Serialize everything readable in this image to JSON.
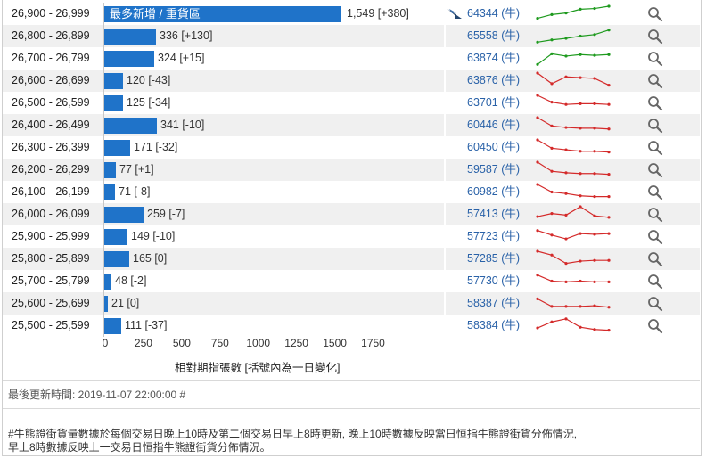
{
  "rows": [
    {
      "range": "26,900 - 26,999",
      "value": 1549,
      "change": "+380",
      "label": "1,549 [+380]",
      "inside": "最多新增 / 重貨區",
      "code": "64344 (牛)",
      "icon": "flag-icon",
      "trend": "up",
      "spark": [
        0.2,
        0.45,
        0.55,
        0.8,
        0.85,
        1.0
      ]
    },
    {
      "range": "26,800 - 26,899",
      "value": 336,
      "change": "+130",
      "label": "336 [+130]",
      "code": "65558 (牛)",
      "trend": "up",
      "spark": [
        0.1,
        0.25,
        0.35,
        0.5,
        0.6,
        0.9
      ]
    },
    {
      "range": "26,700 - 26,799",
      "value": 324,
      "change": "+15",
      "label": "324 [+15]",
      "code": "63874 (牛)",
      "trend": "up",
      "spark": [
        0.1,
        0.8,
        0.65,
        0.75,
        0.7,
        0.75
      ]
    },
    {
      "range": "26,600 - 26,699",
      "value": 120,
      "change": "-43",
      "label": "120 [-43]",
      "code": "63876 (牛)",
      "trend": "down",
      "spark": [
        1.0,
        0.3,
        0.75,
        0.7,
        0.65,
        0.2
      ]
    },
    {
      "range": "26,500 - 26,599",
      "value": 125,
      "change": "-34",
      "label": "125 [-34]",
      "code": "63701 (牛)",
      "trend": "down",
      "spark": [
        1.0,
        0.55,
        0.4,
        0.45,
        0.45,
        0.4
      ]
    },
    {
      "range": "26,400 - 26,499",
      "value": 341,
      "change": "-10",
      "label": "341 [-10]",
      "code": "60446 (牛)",
      "trend": "down",
      "spark": [
        1.0,
        0.45,
        0.35,
        0.3,
        0.3,
        0.25
      ]
    },
    {
      "range": "26,300 - 26,399",
      "value": 171,
      "change": "-32",
      "label": "171 [-32]",
      "code": "60450 (牛)",
      "trend": "down",
      "spark": [
        1.0,
        0.45,
        0.35,
        0.25,
        0.25,
        0.2
      ]
    },
    {
      "range": "26,200 - 26,299",
      "value": 77,
      "change": "+1",
      "label": "77 [+1]",
      "code": "59587 (牛)",
      "trend": "down",
      "spark": [
        1.0,
        0.4,
        0.3,
        0.25,
        0.25,
        0.2
      ]
    },
    {
      "range": "26,100 - 26,199",
      "value": 71,
      "change": "-8",
      "label": "71 [-8]",
      "code": "60982 (牛)",
      "trend": "down",
      "spark": [
        1.0,
        0.5,
        0.4,
        0.25,
        0.2,
        0.2
      ]
    },
    {
      "range": "26,000 - 26,099",
      "value": 259,
      "change": "-7",
      "label": "259 [-7]",
      "code": "57413 (牛)",
      "trend": "down",
      "spark": [
        0.35,
        0.55,
        0.45,
        1.0,
        0.4,
        0.3
      ]
    },
    {
      "range": "25,900 - 25,999",
      "value": 149,
      "change": "-10",
      "label": "149 [-10]",
      "code": "57723 (牛)",
      "trend": "down",
      "spark": [
        0.9,
        0.6,
        0.35,
        0.7,
        0.65,
        0.7
      ]
    },
    {
      "range": "25,800 - 25,899",
      "value": 165,
      "change": "0",
      "label": "165 [0]",
      "code": "57285 (牛)",
      "trend": "down",
      "spark": [
        1.0,
        0.75,
        0.2,
        0.35,
        0.4,
        0.4
      ]
    },
    {
      "range": "25,700 - 25,799",
      "value": 48,
      "change": "-2",
      "label": "48 [-2]",
      "code": "57730 (牛)",
      "trend": "down",
      "spark": [
        0.9,
        0.5,
        0.45,
        0.5,
        0.45,
        0.45
      ]
    },
    {
      "range": "25,600 - 25,699",
      "value": 21,
      "change": "0",
      "label": "21 [0]",
      "code": "58387 (牛)",
      "trend": "down",
      "spark": [
        0.8,
        0.3,
        0.3,
        0.3,
        0.35,
        0.25
      ]
    },
    {
      "range": "25,500 - 25,599",
      "value": 111,
      "change": "-37",
      "label": "111 [-37]",
      "code": "58384 (牛)",
      "trend": "down",
      "spark": [
        0.35,
        0.75,
        0.95,
        0.4,
        0.25,
        0.2
      ]
    }
  ],
  "axis": {
    "ticks": [
      "0",
      "250",
      "500",
      "750",
      "1000",
      "1250",
      "1500",
      "1750"
    ],
    "max": 1750,
    "title": "相對期指張數 [括號內為一日變化]"
  },
  "footer": {
    "updated": "最後更新時間: 2019-11-07 22:00:00 #",
    "note_line1": "#牛熊證街貨量數據於每個交易日晚上10時及第二個交易日早上8時更新, 晚上10時數據反映當日恒指牛熊證街貨分佈情況,",
    "note_line2": "早上8時數據反映上一交易日恒指牛熊證街貨分佈情況。"
  },
  "colors": {
    "bar": "#1f73c9",
    "up": "#1e9a1e",
    "down": "#d42a2a",
    "link": "#2a62a8"
  }
}
